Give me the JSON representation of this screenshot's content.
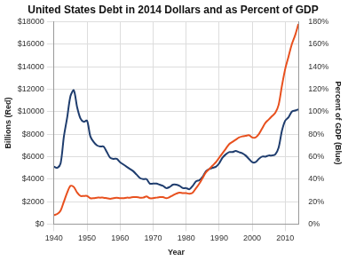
{
  "chart_data": {
    "type": "line",
    "title": "United States Debt in 2014 Dollars and as Percent of GDP",
    "x_label": "Year",
    "y_label": "Billions (Red)",
    "y2_label": "Percent of GDP (Blue)",
    "grid": true,
    "x": [
      1940,
      1941,
      1942,
      1943,
      1944,
      1945,
      1946,
      1947,
      1948,
      1949,
      1950,
      1951,
      1952,
      1953,
      1954,
      1955,
      1956,
      1957,
      1958,
      1959,
      1960,
      1961,
      1962,
      1963,
      1964,
      1965,
      1966,
      1967,
      1968,
      1969,
      1970,
      1971,
      1972,
      1973,
      1974,
      1975,
      1976,
      1977,
      1978,
      1979,
      1980,
      1981,
      1982,
      1983,
      1984,
      1985,
      1986,
      1987,
      1988,
      1989,
      1990,
      1991,
      1992,
      1993,
      1994,
      1995,
      1996,
      1997,
      1998,
      1999,
      2000,
      2001,
      2002,
      2003,
      2004,
      2005,
      2006,
      2007,
      2008,
      2009,
      2010,
      2011,
      2012,
      2013,
      2014
    ],
    "xlim": [
      1940,
      2014
    ],
    "xticks": [
      1940,
      1950,
      1960,
      1970,
      1980,
      1990,
      2000,
      2010
    ],
    "ylim": [
      0,
      18000
    ],
    "yticks": [
      {
        "value": 0,
        "label": "$0"
      },
      {
        "value": 2000,
        "label": "$2000"
      },
      {
        "value": 4000,
        "label": "$4000"
      },
      {
        "value": 6000,
        "label": "$6000"
      },
      {
        "value": 8000,
        "label": "$8000"
      },
      {
        "value": 10000,
        "label": "$10000"
      },
      {
        "value": 12000,
        "label": "$12000"
      },
      {
        "value": 14000,
        "label": "$14000"
      },
      {
        "value": 16000,
        "label": "$16000"
      },
      {
        "value": 18000,
        "label": "$18000"
      }
    ],
    "y2lim": [
      0,
      180
    ],
    "y2ticks": [
      {
        "value": 0,
        "label": "0%"
      },
      {
        "value": 20,
        "label": "20%"
      },
      {
        "value": 40,
        "label": "40%"
      },
      {
        "value": 60,
        "label": "60%"
      },
      {
        "value": 80,
        "label": "80%"
      },
      {
        "value": 100,
        "label": "100%"
      },
      {
        "value": 120,
        "label": "120%"
      },
      {
        "value": 140,
        "label": "140%"
      },
      {
        "value": 160,
        "label": "160%"
      },
      {
        "value": 180,
        "label": "180%"
      }
    ],
    "series": [
      {
        "color": "#e8501e",
        "axis": "y",
        "values": [
          800,
          900,
          1200,
          2000,
          2800,
          3400,
          3300,
          2800,
          2500,
          2500,
          2500,
          2300,
          2300,
          2350,
          2350,
          2350,
          2300,
          2250,
          2300,
          2350,
          2300,
          2300,
          2350,
          2350,
          2400,
          2400,
          2350,
          2350,
          2450,
          2300,
          2300,
          2350,
          2400,
          2400,
          2300,
          2400,
          2550,
          2700,
          2800,
          2750,
          2750,
          2700,
          2800,
          3200,
          3600,
          4100,
          4600,
          4900,
          5200,
          5500,
          5900,
          6300,
          6700,
          7100,
          7300,
          7500,
          7700,
          7800,
          7850,
          7900,
          7700,
          7700,
          8000,
          8500,
          9000,
          9300,
          9600,
          9900,
          10600,
          12300,
          13800,
          14900,
          16000,
          16800,
          17800
        ]
      },
      {
        "color": "#1f3d6e",
        "axis": "y2",
        "values": [
          51,
          50,
          54,
          78,
          95,
          114,
          119,
          104,
          94,
          91,
          92,
          78,
          73,
          70,
          69,
          69,
          64,
          59,
          58,
          58,
          55,
          53,
          51,
          49,
          47,
          44,
          41,
          40,
          40,
          36,
          36,
          36,
          35,
          34,
          32,
          33,
          35,
          35,
          34,
          32,
          32,
          31,
          34,
          38,
          39,
          42,
          47,
          49,
          50,
          51,
          54,
          59,
          62,
          64,
          64,
          65,
          64,
          63,
          61,
          58,
          55,
          55,
          58,
          60,
          60,
          61,
          61,
          62,
          68,
          83,
          92,
          95,
          100,
          101,
          102
        ]
      }
    ]
  }
}
